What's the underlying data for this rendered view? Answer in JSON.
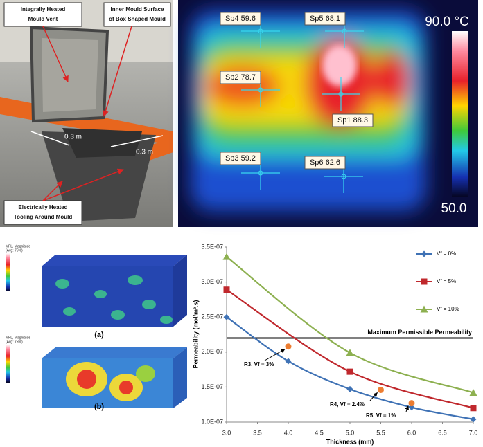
{
  "photo": {
    "labels": [
      {
        "lines": [
          "Integrally Heated",
          "Mould Vent"
        ]
      },
      {
        "lines": [
          "Inner Mould Surface",
          "of Box Shaped Mould"
        ]
      },
      {
        "lines": [
          "Electrically Heated",
          "Tooling Around Mould"
        ]
      }
    ],
    "dimensions": [
      "0.3 m",
      "0.3 m"
    ]
  },
  "thermal": {
    "spots": [
      "Sp4 59.6",
      "Sp5 68.1",
      "Sp2 78.7",
      "Sp1 88.3",
      "Sp3 59.2",
      "Sp6 62.6"
    ],
    "scale_max": "90.0 °C",
    "scale_min": "50.0"
  },
  "fe": {
    "panels": [
      {
        "legend_title": "MFL, Magnitude",
        "legend_subtitle": "(Avg: 75%)",
        "label": "(a)"
      },
      {
        "legend_title": "MFL, Magnitude",
        "legend_subtitle": "(Avg: 75%)",
        "label": "(b)"
      }
    ]
  },
  "chart_data": {
    "type": "line",
    "x_label": "Thickness (mm)",
    "y_label": "Permeability (mol/m².s)",
    "xlim": [
      3,
      7
    ],
    "xticks": [
      {
        "value": 3,
        "label": "3.0"
      },
      {
        "value": 3.5,
        "label": "3.5"
      },
      {
        "value": 4,
        "label": "4.0"
      },
      {
        "value": 4.5,
        "label": "4.5"
      },
      {
        "value": 5,
        "label": "5.0"
      },
      {
        "value": 5.5,
        "label": "5.5"
      },
      {
        "value": 6,
        "label": "6.0"
      },
      {
        "value": 6.5,
        "label": "6.5"
      },
      {
        "value": 7,
        "label": "7.0"
      }
    ],
    "ylim": [
      1e-07,
      3.5e-07
    ],
    "yticks": [
      {
        "value": 1e-07,
        "label": "1.0E-07"
      },
      {
        "value": 1.5e-07,
        "label": "1.5E-07"
      },
      {
        "value": 2e-07,
        "label": "2.0E-07"
      },
      {
        "value": 2.5e-07,
        "label": "2.5E-07"
      },
      {
        "value": 3e-07,
        "label": "3.0E-07"
      },
      {
        "value": 3.5e-07,
        "label": "3.5E-07"
      }
    ],
    "series": [
      {
        "name": "Vf = 0%",
        "color": "#3f72b5",
        "marker": "diamond",
        "x": [
          3,
          4,
          5,
          6,
          7
        ],
        "values": [
          2.5e-07,
          1.87e-07,
          1.47e-07,
          1.21e-07,
          1.04e-07
        ]
      },
      {
        "name": "Vf = 5%",
        "color": "#c0282d",
        "marker": "square",
        "x": [
          3,
          5,
          7
        ],
        "values": [
          2.89e-07,
          1.72e-07,
          1.2e-07
        ]
      },
      {
        "name": "Vf = 10%",
        "color": "#8db050",
        "marker": "triangle",
        "x": [
          3,
          5,
          7
        ],
        "values": [
          3.36e-07,
          1.99e-07,
          1.42e-07
        ]
      }
    ],
    "reference_line": {
      "value": 2.2e-07,
      "label": "Maximum Permissible Permeability",
      "color": "#000000"
    },
    "annotations": [
      {
        "text": "R3, Vf = 3%",
        "x": 4,
        "y": 2.08e-07
      },
      {
        "text": "R4, Vf = 2.4%",
        "x": 5.5,
        "y": 1.46e-07
      },
      {
        "text": "R5, Vf = 1%",
        "x": 6,
        "y": 1.27e-07
      }
    ],
    "annotation_color": "#ed7d31"
  }
}
